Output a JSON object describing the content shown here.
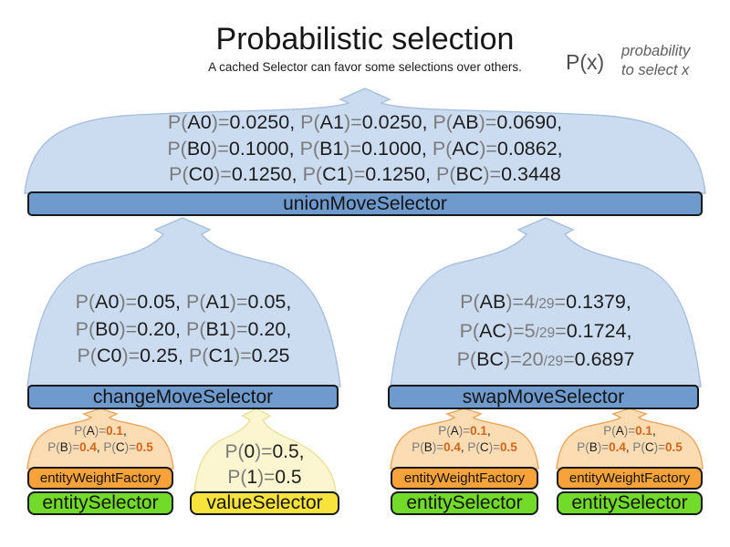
{
  "title": "Probabilistic selection",
  "subtitle": "A cached Selector can favor some selections over others.",
  "legend": {
    "symbol": "P(x)",
    "description_line1": "probability",
    "description_line2": "to select x"
  },
  "colors": {
    "funnel_blue_fill": "#ccdcf0",
    "funnel_blue_stroke": "#a6bfdd",
    "funnel_orange_fill": "#fcdcb3",
    "funnel_orange_stroke": "#eda55c",
    "funnel_yellow_fill": "#fcf6d0",
    "funnel_yellow_stroke": "#ece099",
    "bar_blue": "#6f9ace",
    "bar_orange": "#f9a23a",
    "bar_green": "#72da28",
    "bar_yellow": "#f7e33c",
    "text_gray": "#7b7b7b",
    "text_dark": "#1d1d1d",
    "value_orange": "#d4641a"
  },
  "union_funnel": {
    "bar_label": "unionMoveSelector",
    "lines": [
      [
        {
          "t": "P(",
          "s": "g"
        },
        {
          "t": "A0",
          "s": "k"
        },
        {
          "t": ")=",
          "s": "g"
        },
        {
          "t": "0.0250, ",
          "s": "k"
        },
        {
          "t": "P(",
          "s": "g"
        },
        {
          "t": "A1",
          "s": "k"
        },
        {
          "t": ")=",
          "s": "g"
        },
        {
          "t": "0.0250, ",
          "s": "k"
        },
        {
          "t": "P(",
          "s": "g"
        },
        {
          "t": "AB",
          "s": "k"
        },
        {
          "t": ")=",
          "s": "g"
        },
        {
          "t": "0.0690,",
          "s": "k"
        }
      ],
      [
        {
          "t": "P(",
          "s": "g"
        },
        {
          "t": "B0",
          "s": "k"
        },
        {
          "t": ")=",
          "s": "g"
        },
        {
          "t": "0.1000, ",
          "s": "k"
        },
        {
          "t": "P(",
          "s": "g"
        },
        {
          "t": "B1",
          "s": "k"
        },
        {
          "t": ")=",
          "s": "g"
        },
        {
          "t": "0.1000, ",
          "s": "k"
        },
        {
          "t": "P(",
          "s": "g"
        },
        {
          "t": "AC",
          "s": "k"
        },
        {
          "t": ")=",
          "s": "g"
        },
        {
          "t": "0.0862,",
          "s": "k"
        }
      ],
      [
        {
          "t": "P(",
          "s": "g"
        },
        {
          "t": "C0",
          "s": "k"
        },
        {
          "t": ")=",
          "s": "g"
        },
        {
          "t": "0.1250, ",
          "s": "k"
        },
        {
          "t": "P(",
          "s": "g"
        },
        {
          "t": "C1",
          "s": "k"
        },
        {
          "t": ")=",
          "s": "g"
        },
        {
          "t": "0.1250, ",
          "s": "k"
        },
        {
          "t": "P(",
          "s": "g"
        },
        {
          "t": "BC",
          "s": "k"
        },
        {
          "t": ")=",
          "s": "g"
        },
        {
          "t": "0.3448",
          "s": "k"
        }
      ]
    ]
  },
  "change_funnel": {
    "bar_label": "changeMoveSelector",
    "lines": [
      [
        {
          "t": "P(",
          "s": "g"
        },
        {
          "t": "A0",
          "s": "k"
        },
        {
          "t": ")=",
          "s": "g"
        },
        {
          "t": "0.05, ",
          "s": "k"
        },
        {
          "t": "P(",
          "s": "g"
        },
        {
          "t": "A1",
          "s": "k"
        },
        {
          "t": ")=",
          "s": "g"
        },
        {
          "t": "0.05,",
          "s": "k"
        }
      ],
      [
        {
          "t": "P(",
          "s": "g"
        },
        {
          "t": "B0",
          "s": "k"
        },
        {
          "t": ")=",
          "s": "g"
        },
        {
          "t": "0.20, ",
          "s": "k"
        },
        {
          "t": "P(",
          "s": "g"
        },
        {
          "t": "B1",
          "s": "k"
        },
        {
          "t": ")=",
          "s": "g"
        },
        {
          "t": "0.20,",
          "s": "k"
        }
      ],
      [
        {
          "t": "P(",
          "s": "g"
        },
        {
          "t": "C0",
          "s": "k"
        },
        {
          "t": ")=",
          "s": "g"
        },
        {
          "t": "0.25, ",
          "s": "k"
        },
        {
          "t": "P(",
          "s": "g"
        },
        {
          "t": "C1",
          "s": "k"
        },
        {
          "t": ")=",
          "s": "g"
        },
        {
          "t": "0.25",
          "s": "k"
        }
      ]
    ]
  },
  "swap_funnel": {
    "bar_label": "swapMoveSelector",
    "lines": [
      [
        {
          "t": "P(",
          "s": "g"
        },
        {
          "t": "AB",
          "s": "k"
        },
        {
          "t": ")=",
          "s": "g"
        },
        {
          "t": "4",
          "s": "g"
        },
        {
          "t": "/29",
          "s": "gs"
        },
        {
          "t": "=",
          "s": "g"
        },
        {
          "t": "0.1379,",
          "s": "k"
        }
      ],
      [
        {
          "t": "P(",
          "s": "g"
        },
        {
          "t": "AC",
          "s": "k"
        },
        {
          "t": ")=",
          "s": "g"
        },
        {
          "t": "5",
          "s": "g"
        },
        {
          "t": "/29",
          "s": "gs"
        },
        {
          "t": "=",
          "s": "g"
        },
        {
          "t": "0.1724,",
          "s": "k"
        }
      ],
      [
        {
          "t": "P(",
          "s": "g"
        },
        {
          "t": "BC",
          "s": "k"
        },
        {
          "t": ")=",
          "s": "g"
        },
        {
          "t": "20",
          "s": "g"
        },
        {
          "t": "/29",
          "s": "gs"
        },
        {
          "t": "=",
          "s": "g"
        },
        {
          "t": "0.6897",
          "s": "k"
        }
      ]
    ]
  },
  "entity_stack": {
    "weight_bar_label": "entityWeightFactory",
    "selector_bar_label": "entitySelector",
    "lines": [
      [
        {
          "t": "P(",
          "s": "g"
        },
        {
          "t": "A",
          "s": "k"
        },
        {
          "t": ")=",
          "s": "g"
        },
        {
          "t": "0.1",
          "s": "o"
        },
        {
          "t": ",",
          "s": "k"
        }
      ],
      [
        {
          "t": "P(",
          "s": "g"
        },
        {
          "t": "B",
          "s": "k"
        },
        {
          "t": ")=",
          "s": "g"
        },
        {
          "t": "0.4",
          "s": "o"
        },
        {
          "t": ", ",
          "s": "k"
        },
        {
          "t": "P(",
          "s": "g"
        },
        {
          "t": "C",
          "s": "k"
        },
        {
          "t": ")=",
          "s": "g"
        },
        {
          "t": "0.5",
          "s": "o"
        }
      ]
    ]
  },
  "value_stack": {
    "selector_bar_label": "valueSelector",
    "lines": [
      [
        {
          "t": "P(",
          "s": "g"
        },
        {
          "t": "0",
          "s": "k"
        },
        {
          "t": ")=",
          "s": "g"
        },
        {
          "t": "0.5,",
          "s": "k"
        }
      ],
      [
        {
          "t": "P(",
          "s": "g"
        },
        {
          "t": "1",
          "s": "k"
        },
        {
          "t": ")=",
          "s": "g"
        },
        {
          "t": "0.5",
          "s": "k"
        }
      ]
    ]
  }
}
